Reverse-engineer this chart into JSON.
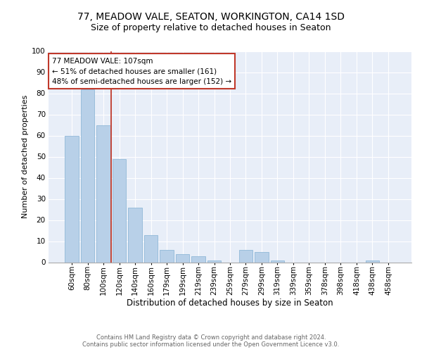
{
  "title": "77, MEADOW VALE, SEATON, WORKINGTON, CA14 1SD",
  "subtitle": "Size of property relative to detached houses in Seaton",
  "xlabel": "Distribution of detached houses by size in Seaton",
  "ylabel": "Number of detached properties",
  "categories": [
    "60sqm",
    "80sqm",
    "100sqm",
    "120sqm",
    "140sqm",
    "160sqm",
    "179sqm",
    "199sqm",
    "219sqm",
    "239sqm",
    "259sqm",
    "279sqm",
    "299sqm",
    "319sqm",
    "339sqm",
    "359sqm",
    "378sqm",
    "398sqm",
    "418sqm",
    "438sqm",
    "458sqm"
  ],
  "values": [
    60,
    82,
    65,
    49,
    26,
    13,
    6,
    4,
    3,
    1,
    0,
    6,
    5,
    1,
    0,
    0,
    0,
    0,
    0,
    1,
    0
  ],
  "bar_color": "#b8d0e8",
  "bar_edge_color": "#90b8d8",
  "vline_color": "#c0392b",
  "annotation_text": "77 MEADOW VALE: 107sqm\n← 51% of detached houses are smaller (161)\n48% of semi-detached houses are larger (152) →",
  "annotation_box_color": "#c0392b",
  "ylim": [
    0,
    100
  ],
  "yticks": [
    0,
    10,
    20,
    30,
    40,
    50,
    60,
    70,
    80,
    90,
    100
  ],
  "background_color": "#e8eef8",
  "grid_color": "#ffffff",
  "footer_text": "Contains HM Land Registry data © Crown copyright and database right 2024.\nContains public sector information licensed under the Open Government Licence v3.0.",
  "title_fontsize": 10,
  "subtitle_fontsize": 9,
  "xlabel_fontsize": 8.5,
  "ylabel_fontsize": 8,
  "tick_fontsize": 7.5,
  "footer_fontsize": 6,
  "annotation_fontsize": 7.5
}
